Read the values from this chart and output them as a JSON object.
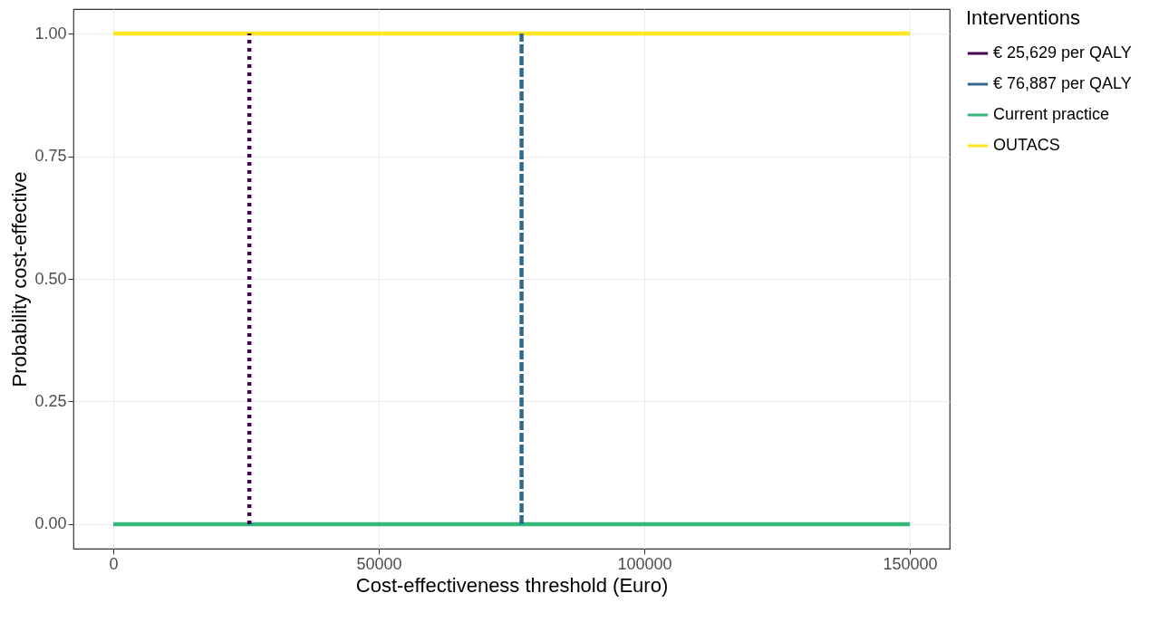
{
  "chart_data": {
    "type": "line",
    "xlabel": "Cost-effectiveness threshold (Euro)",
    "ylabel": "Probability cost-effective",
    "legend_title": "Interventions",
    "xlim": [
      -7500,
      157500
    ],
    "xticks": [
      0,
      50000,
      100000,
      150000
    ],
    "ylim": [
      -0.05,
      1.05
    ],
    "yticks": [
      {
        "value": 0,
        "label": "0.00"
      },
      {
        "value": 0.25,
        "label": "0.25"
      },
      {
        "value": 0.5,
        "label": "0.50"
      },
      {
        "value": 0.75,
        "label": "0.75"
      },
      {
        "value": 1,
        "label": "1.00"
      }
    ],
    "grid": true,
    "legend": "right",
    "series": [
      {
        "name": "€ 25,629 per QALY",
        "color": "#440154",
        "x": [
          25629,
          25629
        ],
        "values": [
          0,
          1
        ],
        "line_style": "dotted"
      },
      {
        "name": "€ 76,887 per QALY",
        "color": "#31688e",
        "x": [
          76887,
          76887
        ],
        "values": [
          0,
          1
        ],
        "line_style": "dashed"
      },
      {
        "name": "Current practice",
        "color": "#35b779",
        "x": [
          0,
          150000
        ],
        "values": [
          0,
          0
        ],
        "line_style": "solid"
      },
      {
        "name": "OUTACS",
        "color": "#fde725",
        "x": [
          0,
          150000
        ],
        "values": [
          1,
          1
        ],
        "line_style": "solid"
      }
    ]
  }
}
